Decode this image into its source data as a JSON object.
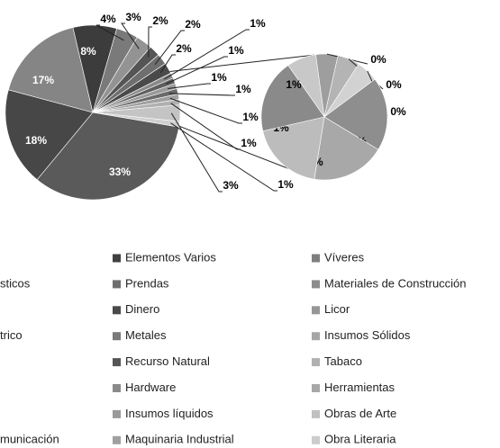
{
  "chart_data": {
    "type": "pie-of-pie",
    "values": [
      33,
      18,
      17,
      8,
      4,
      3,
      2,
      2,
      2,
      1,
      1,
      1,
      1,
      1,
      1,
      3,
      1
    ],
    "value_labels": [
      "33%",
      "18%",
      "17%",
      "8%",
      "4%",
      "3%",
      "2%",
      "2%",
      "2%",
      "1%",
      "1%",
      "1%",
      "1%",
      "1%",
      "1%",
      "3%",
      "1%"
    ],
    "colors": [
      "#5a5a5a",
      "#474747",
      "#858585",
      "#3c3c3c",
      "#7a7a7a",
      "#939393",
      "#555555",
      "#6e6e6e",
      "#4a4a4a",
      "#8a8a8a",
      "#5e5e5e",
      "#9a9a9a",
      "#6a6a6a",
      "#a0a0a0",
      "#b0b0b0",
      "#c4c4c4",
      "#d0d0d0"
    ],
    "secondary_values": [
      0.4,
      0.3,
      0.3,
      0.3,
      1,
      1,
      1,
      1
    ],
    "secondary_value_labels": [
      "0%",
      "0%",
      "0%",
      "0%",
      "1%",
      "1%",
      "1%",
      "1%"
    ],
    "secondary_colors": [
      "#c8c8c8",
      "#9e9e9e",
      "#b4b4b4",
      "#d2d2d2",
      "#8e8e8e",
      "#a8a8a8",
      "#bcbcbc",
      "#8a8a8a"
    ],
    "legend": [
      {
        "name": "sticos",
        "color": "#6a6a6a"
      },
      {
        "name": "trico",
        "color": "#6a6a6a"
      },
      {
        "name": "municación",
        "color": "#6a6a6a"
      },
      {
        "name": "Elementos Varios",
        "color": "#404040"
      },
      {
        "name": "Prendas",
        "color": "#6e6e6e"
      },
      {
        "name": "Dinero",
        "color": "#4a4a4a"
      },
      {
        "name": "Metales",
        "color": "#7a7a7a"
      },
      {
        "name": "Recurso Natural",
        "color": "#555555"
      },
      {
        "name": "Hardware",
        "color": "#8a8a8a"
      },
      {
        "name": "Insumos líquidos",
        "color": "#9a9a9a"
      },
      {
        "name": "Maquinaria Industrial",
        "color": "#a0a0a0"
      },
      {
        "name": "Víveres",
        "color": "#7f7f7f"
      },
      {
        "name": "Materiales de Construcción",
        "color": "#8c8c8c"
      },
      {
        "name": "Licor",
        "color": "#969696"
      },
      {
        "name": "Insumos Sólidos",
        "color": "#a6a6a6"
      },
      {
        "name": "Tabaco",
        "color": "#b0b0b0"
      },
      {
        "name": "Herramientas",
        "color": "#a8a8a8"
      },
      {
        "name": "Obras de Arte",
        "color": "#c0c0c0"
      },
      {
        "name": "Obra Literaria",
        "color": "#cccccc"
      }
    ]
  }
}
